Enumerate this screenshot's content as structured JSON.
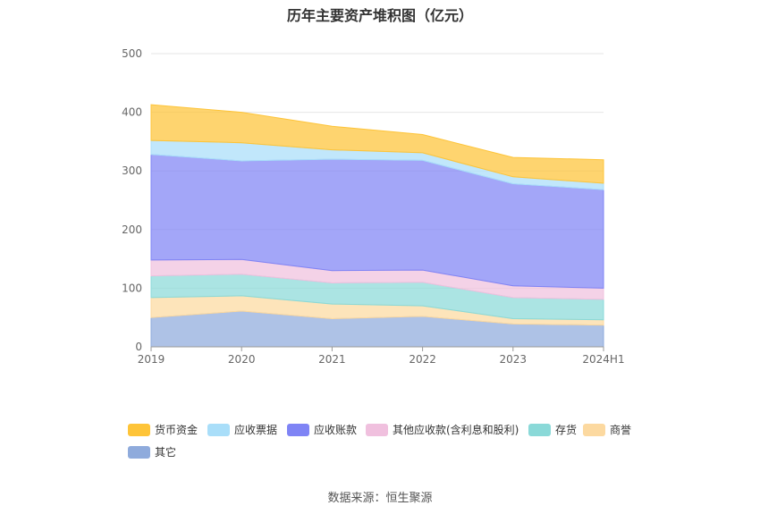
{
  "chart_data": {
    "type": "area",
    "stacked": true,
    "title": "历年主要资产堆积图（亿元）",
    "categories": [
      "2019",
      "2020",
      "2021",
      "2022",
      "2023",
      "2024H1"
    ],
    "ylim": [
      0,
      500
    ],
    "yticks": [
      "0",
      "100",
      "200",
      "300",
      "400",
      "500"
    ],
    "grid": true,
    "legend_position": "bottom",
    "series": [
      {
        "name": "其它",
        "color": "#8fabdc",
        "values": [
          50,
          61,
          48,
          52,
          39,
          37
        ]
      },
      {
        "name": "商誉",
        "color": "#fcd9a0",
        "values": [
          34,
          26,
          25,
          18,
          9,
          9
        ]
      },
      {
        "name": "存货",
        "color": "#8ad9d8",
        "values": [
          37,
          37,
          36,
          40,
          36,
          35
        ]
      },
      {
        "name": "其他应收款(含利息和股利)",
        "color": "#f0c0de",
        "values": [
          27,
          25,
          21,
          21,
          20,
          19
        ]
      },
      {
        "name": "应收账款",
        "color": "#7f84f5",
        "values": [
          180,
          168,
          190,
          187,
          174,
          168
        ]
      },
      {
        "name": "应收票据",
        "color": "#a9def9",
        "values": [
          24,
          31,
          16,
          13,
          12,
          11
        ]
      },
      {
        "name": "货币资金",
        "color": "#fec438",
        "values": [
          61,
          52,
          40,
          31,
          33,
          40
        ]
      }
    ],
    "legend_order": [
      "货币资金",
      "应收票据",
      "应收账款",
      "其他应收款(含利息和股利)",
      "存货",
      "商誉",
      "其它"
    ]
  },
  "source_text": "数据来源：恒生聚源"
}
